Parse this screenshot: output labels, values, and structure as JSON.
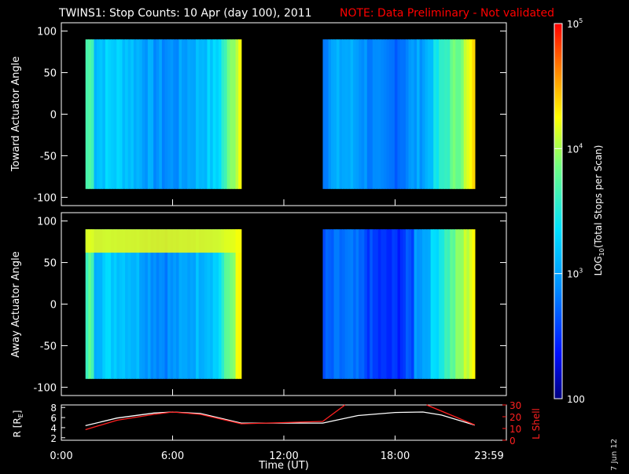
{
  "title": "TWINS1: Stop Counts: 10 Apr (day 100), 2011",
  "note": "NOTE: Data Preliminary - Not validated",
  "stamp": "7 Jun 12",
  "colors": {
    "background": "#000000",
    "axis": "#ffffff",
    "note": "#ff0000",
    "lshell": "#ff2020",
    "radius": "#ffffff"
  },
  "chart_data": [
    {
      "type": "heatmap",
      "ylabel": "Toward Actuator Angle",
      "ylim": [
        -110,
        110
      ],
      "yticks": [
        -100,
        -50,
        0,
        50,
        100
      ],
      "xlim_hours": [
        0,
        24
      ],
      "data_blocks_hours": [
        [
          1.3,
          9.7
        ],
        [
          14.1,
          22.3
        ]
      ],
      "angle_range": [
        -90,
        90
      ]
    },
    {
      "type": "heatmap",
      "ylabel": "Away Actuator Angle",
      "ylim": [
        -110,
        110
      ],
      "yticks": [
        -100,
        -50,
        0,
        50,
        100
      ],
      "xlim_hours": [
        0,
        24
      ],
      "data_blocks_hours": [
        [
          1.3,
          9.7
        ],
        [
          14.1,
          22.3
        ]
      ],
      "angle_range": [
        -90,
        90
      ]
    },
    {
      "type": "line",
      "xlabel": "Time (UT)",
      "xticks": [
        "0:00",
        "6:00",
        "12:00",
        "18:00",
        "23:59"
      ],
      "ylabel_left": "R [R",
      "ylabel_left_sub": "E",
      "ylabel_left_end": "]",
      "yticks_left": [
        2,
        4,
        6,
        8
      ],
      "ylim_left": [
        1.5,
        8.5
      ],
      "ylabel_right": "L Shell",
      "yticks_right": [
        0,
        10,
        20,
        30
      ],
      "ylim_right": [
        0,
        30
      ],
      "series": [
        {
          "axis": "left",
          "x": [
            1.3,
            3.0,
            5.0,
            6.0,
            7.5,
            9.7,
            12.0,
            14.1,
            16.0,
            18.0,
            19.5,
            20.5,
            22.3
          ],
          "y": [
            4.4,
            5.9,
            6.9,
            7.1,
            6.8,
            4.9,
            4.9,
            4.9,
            6.4,
            7.0,
            7.1,
            6.5,
            4.5
          ]
        },
        {
          "axis": "right",
          "x": [
            1.3,
            3.0,
            5.0,
            6.0,
            7.5,
            9.7,
            12.0,
            14.1,
            15.3
          ],
          "y": [
            9,
            17,
            22,
            24,
            22,
            14,
            15,
            16,
            30
          ]
        },
        {
          "axis": "right",
          "x": [
            19.7,
            22.3
          ],
          "y": [
            30,
            13
          ]
        }
      ]
    },
    {
      "type": "colorbar",
      "label_prefix": "LOG",
      "label_sub": "10",
      "label_suffix": "(Total Stops per Scan)",
      "ticks": [
        {
          "base": "10",
          "exp": "5",
          "value": 100000
        },
        {
          "base": "10",
          "exp": "4",
          "value": 10000
        },
        {
          "base": "10",
          "exp": "3",
          "value": 1000
        },
        {
          "base": "100",
          "exp": "",
          "value": 100
        }
      ],
      "range": [
        100,
        100000
      ],
      "scale": "log"
    }
  ]
}
